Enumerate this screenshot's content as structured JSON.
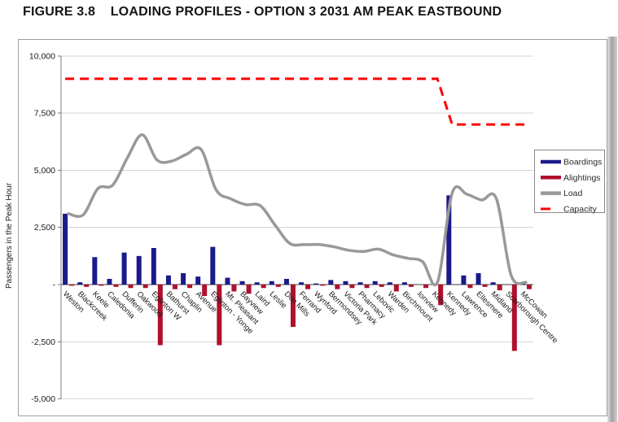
{
  "figure_title": "FIGURE 3.8    LOADING PROFILES - OPTION 3 2031 AM PEAK EASTBOUND",
  "y_axis": {
    "title": "Passengers in the Peak Hour",
    "ticks": [
      {
        "label": "10,000",
        "value": 10000
      },
      {
        "label": "7,500",
        "value": 7500
      },
      {
        "label": "5,000",
        "value": 5000
      },
      {
        "label": "2,500",
        "value": 2500
      },
      {
        "label": "-",
        "value": 0
      },
      {
        "label": "-2,500",
        "value": -2500
      },
      {
        "label": "-5,000",
        "value": -5000
      }
    ]
  },
  "legend": {
    "items": [
      {
        "label": "Boardings",
        "color": "#1a1a8c",
        "style": "solid"
      },
      {
        "label": "Alightings",
        "color": "#b00f2d",
        "style": "solid"
      },
      {
        "label": "Load",
        "color": "#999999",
        "style": "solid"
      },
      {
        "label": "Capacity",
        "color": "#ff0000",
        "style": "dashed"
      }
    ]
  },
  "chart_data": {
    "type": "combo-bar-line",
    "title": "FIGURE 3.8 LOADING PROFILES - OPTION 3 2031 AM PEAK EASTBOUND",
    "ylabel": "Passengers in the Peak Hour",
    "ylim": [
      -5000,
      10000
    ],
    "grid": true,
    "legend_position": "right",
    "categories": [
      "Weston",
      "Blackcreek",
      "Keele",
      "Caledonia",
      "Dufferin",
      "Oakwood",
      "Eglinton W",
      "Bathurst",
      "Chaplin",
      "Avenue",
      "Eglinton - Yonge",
      "Mt. Pleasant",
      "Bayview",
      "Laird",
      "Leslie",
      "Don Mills",
      "Ferrand",
      "Wynford",
      "Bermondsey",
      "Victoria Park",
      "Pharmacy",
      "Lebovic",
      "Warden",
      "Birchmount",
      "Ionview",
      "Kennedy",
      "Kennedy",
      "Lawrence",
      "Ellesmere",
      "Midland",
      "Scarborough Centre",
      "McCowan"
    ],
    "series": [
      {
        "name": "Boardings",
        "type": "bar",
        "color": "#1a1a8c",
        "values": [
          3100,
          100,
          1200,
          250,
          1400,
          1250,
          1600,
          400,
          500,
          350,
          1650,
          300,
          150,
          100,
          150,
          250,
          100,
          50,
          200,
          150,
          100,
          150,
          100,
          100,
          0,
          0,
          3900,
          400,
          500,
          100,
          0,
          50
        ]
      },
      {
        "name": "Alightings",
        "type": "bar",
        "color": "#b00f2d",
        "values": [
          -50,
          -100,
          -50,
          -100,
          -150,
          -150,
          -2650,
          -200,
          -150,
          -500,
          -2650,
          -300,
          -400,
          -150,
          -100,
          -1850,
          -200,
          -50,
          -200,
          -150,
          -150,
          -100,
          -300,
          -100,
          -150,
          -900,
          0,
          -150,
          -100,
          -250,
          -2900,
          -200
        ]
      },
      {
        "name": "Load",
        "type": "line",
        "smooth": true,
        "color": "#999999",
        "values": [
          3100,
          3050,
          4200,
          4350,
          5550,
          6550,
          5450,
          5400,
          5700,
          5900,
          4150,
          3750,
          3500,
          3450,
          2600,
          1800,
          1750,
          1750,
          1650,
          1500,
          1450,
          1550,
          1300,
          1150,
          1000,
          100,
          4000,
          3950,
          3700,
          3750,
          400,
          100
        ]
      },
      {
        "name": "Capacity",
        "type": "line",
        "dashed": true,
        "color": "#ff0000",
        "values": [
          9000,
          9000,
          9000,
          9000,
          9000,
          9000,
          9000,
          9000,
          9000,
          9000,
          9000,
          9000,
          9000,
          9000,
          9000,
          9000,
          9000,
          9000,
          9000,
          9000,
          9000,
          9000,
          9000,
          9000,
          9000,
          9000,
          7000,
          7000,
          7000,
          7000,
          7000,
          7000
        ]
      }
    ]
  }
}
